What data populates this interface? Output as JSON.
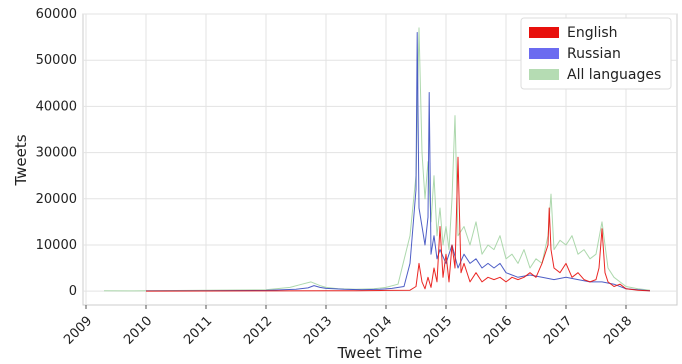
{
  "chart_data": {
    "type": "line",
    "xlabel": "Tweet Time",
    "ylabel": "Tweets",
    "xlim": [
      2008.95,
      2018.85
    ],
    "ylim": [
      -3000,
      60000
    ],
    "grid": true,
    "legend_position": "top-right",
    "x_ticks": [
      2009,
      2010,
      2011,
      2012,
      2013,
      2014,
      2015,
      2016,
      2017,
      2018
    ],
    "y_ticks": [
      0,
      10000,
      20000,
      30000,
      40000,
      50000,
      60000
    ],
    "x_tick_labels": [
      "2009",
      "2010",
      "2011",
      "2012",
      "2013",
      "2014",
      "2015",
      "2016",
      "2017",
      "2018"
    ],
    "y_tick_labels": [
      "0",
      "10000",
      "20000",
      "30000",
      "40000",
      "50000",
      "60000"
    ],
    "series": [
      {
        "name": "All languages",
        "color": "#9fd19f",
        "x": [
          2009.3,
          2009.8,
          2010.0,
          2011.0,
          2012.0,
          2012.4,
          2012.6,
          2012.75,
          2012.9,
          2013.0,
          2013.2,
          2013.5,
          2013.8,
          2014.0,
          2014.2,
          2014.4,
          2014.5,
          2014.55,
          2014.6,
          2014.65,
          2014.7,
          2014.75,
          2014.8,
          2014.85,
          2014.9,
          2014.95,
          2015.0,
          2015.05,
          2015.1,
          2015.15,
          2015.2,
          2015.3,
          2015.4,
          2015.5,
          2015.6,
          2015.7,
          2015.8,
          2015.9,
          2016.0,
          2016.1,
          2016.2,
          2016.3,
          2016.4,
          2016.5,
          2016.6,
          2016.7,
          2016.75,
          2016.8,
          2016.9,
          2017.0,
          2017.1,
          2017.2,
          2017.3,
          2017.4,
          2017.5,
          2017.6,
          2017.65,
          2017.7,
          2017.8,
          2017.9,
          2018.0,
          2018.2,
          2018.4
        ],
        "y": [
          100,
          50,
          100,
          200,
          300,
          800,
          1500,
          2000,
          1200,
          800,
          500,
          400,
          500,
          800,
          1500,
          12000,
          25000,
          57000,
          30000,
          20000,
          28000,
          15000,
          25000,
          12000,
          18000,
          10000,
          14000,
          9000,
          20000,
          38000,
          12000,
          14000,
          10000,
          15000,
          8000,
          10000,
          9000,
          12000,
          7000,
          8000,
          6000,
          9000,
          5000,
          7000,
          6000,
          12000,
          21000,
          9000,
          11000,
          10000,
          12000,
          8000,
          9000,
          7000,
          8000,
          15000,
          10000,
          5000,
          3000,
          2000,
          1000,
          500,
          200
        ]
      },
      {
        "name": "Russian",
        "color": "#3b4cc0",
        "x": [
          2010.0,
          2011.0,
          2012.0,
          2012.5,
          2012.7,
          2012.8,
          2012.9,
          2013.0,
          2013.3,
          2013.6,
          2013.9,
          2014.1,
          2014.3,
          2014.4,
          2014.45,
          2014.5,
          2014.52,
          2014.55,
          2014.6,
          2014.65,
          2014.7,
          2014.72,
          2014.75,
          2014.8,
          2014.85,
          2014.9,
          2015.0,
          2015.1,
          2015.2,
          2015.3,
          2015.4,
          2015.5,
          2015.6,
          2015.7,
          2015.8,
          2015.9,
          2016.0,
          2016.2,
          2016.4,
          2016.6,
          2016.8,
          2017.0,
          2017.2,
          2017.4,
          2017.6,
          2017.8,
          2018.0,
          2018.4
        ],
        "y": [
          50,
          100,
          150,
          400,
          700,
          1200,
          800,
          600,
          400,
          300,
          400,
          600,
          1000,
          6000,
          14000,
          22000,
          56000,
          18000,
          14000,
          10000,
          16000,
          43000,
          8000,
          12000,
          7000,
          9000,
          6000,
          10000,
          5000,
          8000,
          6000,
          7000,
          5000,
          6000,
          5000,
          6000,
          4000,
          3000,
          3500,
          3000,
          2500,
          3000,
          2500,
          2000,
          2000,
          1500,
          500,
          100
        ]
      },
      {
        "name": "English",
        "color": "#e8100c",
        "x": [
          2010.0,
          2011.0,
          2012.0,
          2013.0,
          2013.5,
          2014.0,
          2014.4,
          2014.5,
          2014.55,
          2014.6,
          2014.65,
          2014.7,
          2014.75,
          2014.8,
          2014.85,
          2014.9,
          2014.95,
          2015.0,
          2015.05,
          2015.1,
          2015.15,
          2015.2,
          2015.25,
          2015.3,
          2015.4,
          2015.5,
          2015.6,
          2015.7,
          2015.8,
          2015.9,
          2016.0,
          2016.1,
          2016.2,
          2016.3,
          2016.4,
          2016.5,
          2016.6,
          2016.7,
          2016.72,
          2016.75,
          2016.8,
          2016.9,
          2017.0,
          2017.1,
          2017.2,
          2017.3,
          2017.4,
          2017.5,
          2017.55,
          2017.6,
          2017.65,
          2017.7,
          2017.8,
          2017.9,
          2018.0,
          2018.2,
          2018.4
        ],
        "y": [
          20,
          30,
          50,
          80,
          100,
          150,
          200,
          1000,
          6000,
          2000,
          500,
          3000,
          800,
          5000,
          2000,
          14000,
          3000,
          8000,
          2000,
          10000,
          5000,
          29000,
          4000,
          6000,
          2000,
          4000,
          2000,
          3000,
          2500,
          3000,
          2000,
          3000,
          2500,
          3000,
          4000,
          3000,
          6000,
          10000,
          18000,
          9000,
          5000,
          4000,
          6000,
          3000,
          4000,
          2500,
          2000,
          2500,
          5000,
          13500,
          4000,
          2000,
          1000,
          1500,
          500,
          200,
          50
        ]
      }
    ]
  }
}
